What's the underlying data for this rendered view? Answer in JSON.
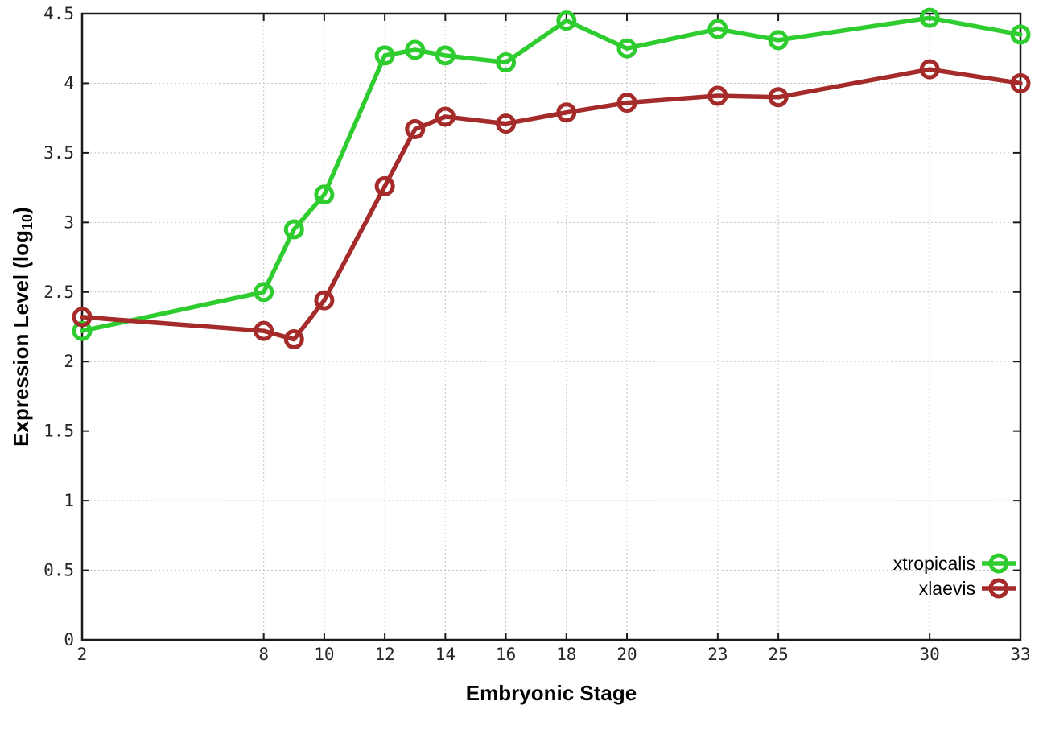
{
  "chart_data": {
    "type": "line",
    "title": "",
    "xlabel": "Embryonic Stage",
    "ylabel_parts": {
      "main": "Expression Level (log",
      "sub": "10",
      "close": ")"
    },
    "xlim": [
      2,
      33
    ],
    "ylim": [
      0,
      4.5
    ],
    "grid": true,
    "legend_position": "inside-bottom-right",
    "x_ticks": [
      2,
      8,
      10,
      12,
      14,
      16,
      18,
      20,
      23,
      25,
      30,
      33
    ],
    "y_ticks": [
      {
        "value": 0,
        "label": "0"
      },
      {
        "value": 0.5,
        "label": "0.5"
      },
      {
        "value": 1,
        "label": "1"
      },
      {
        "value": 1.5,
        "label": "1.5"
      },
      {
        "value": 2,
        "label": "2"
      },
      {
        "value": 2.5,
        "label": "2.5"
      },
      {
        "value": 3,
        "label": "3"
      },
      {
        "value": 3.5,
        "label": "3.5"
      },
      {
        "value": 4,
        "label": "4"
      },
      {
        "value": 4.5,
        "label": "4.5"
      }
    ],
    "x": [
      2,
      8,
      9,
      10,
      12,
      13,
      14,
      16,
      18,
      20,
      23,
      25,
      30,
      33
    ],
    "series": [
      {
        "name": "xtropicalis",
        "color": "#2ecc2e",
        "marker": "open-circle",
        "values": [
          2.22,
          2.5,
          2.95,
          3.2,
          4.2,
          4.24,
          4.2,
          4.15,
          4.45,
          4.25,
          4.39,
          4.31,
          4.47,
          4.35
        ]
      },
      {
        "name": "xlaevis",
        "color": "#a52a2a",
        "marker": "open-circle",
        "values": [
          2.32,
          2.22,
          2.16,
          2.44,
          3.26,
          3.67,
          3.76,
          3.71,
          3.79,
          3.86,
          3.91,
          3.9,
          4.1,
          4.0
        ]
      }
    ],
    "colors": {
      "border": "#1a1a1a",
      "grid": "#c4c4c4",
      "tick_label": "#262626"
    }
  }
}
